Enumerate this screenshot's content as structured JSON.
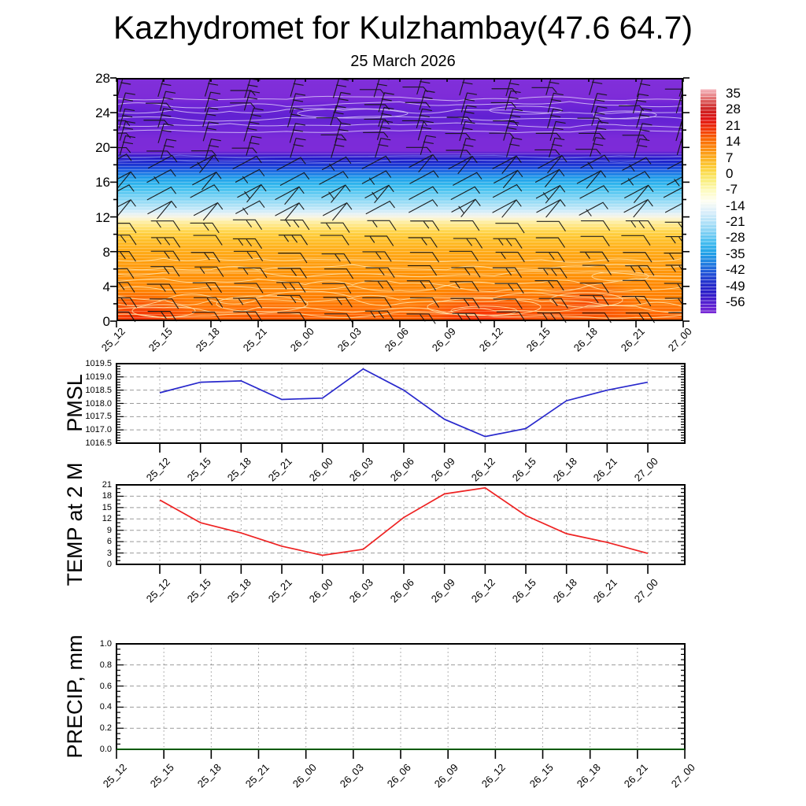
{
  "title": "Kazhydromet for Kulzhambay(47.6 64.7)",
  "subtitle": "25 March 2026",
  "time_labels": [
    "25_12",
    "25_15",
    "25_18",
    "25_21",
    "26_00",
    "26_03",
    "26_06",
    "26_09",
    "26_12",
    "26_15",
    "26_18",
    "26_21",
    "27_00"
  ],
  "colorbar": {
    "levels": [
      "35",
      "28",
      "21",
      "14",
      "7",
      "0",
      "-7",
      "-14",
      "-21",
      "-28",
      "-35",
      "-42",
      "-49",
      "-56"
    ],
    "colors": [
      "#f6bac2",
      "#e06a6a",
      "#cc2222",
      "#e01414",
      "#f23808",
      "#fa6a04",
      "#fc9212",
      "#fcb826",
      "#fcd744",
      "#f9ee7e",
      "#fdfbc0",
      "#fefef2",
      "#dceffa",
      "#b4e2f8",
      "#84d2f4",
      "#48bef0",
      "#22a4e8",
      "#2184e2",
      "#2156d8",
      "#2330cc",
      "#2a1cc8",
      "#5520d0",
      "#7a28d6"
    ]
  },
  "chart_data": [
    {
      "id": "temperature_height_profile",
      "type": "heatmap",
      "x": [
        "25_12",
        "25_15",
        "25_18",
        "25_21",
        "26_00",
        "26_03",
        "26_06",
        "26_09",
        "26_12",
        "26_15",
        "26_18",
        "26_21",
        "27_00"
      ],
      "ylim": [
        0,
        28
      ],
      "yticks": [
        0,
        4,
        8,
        12,
        16,
        20,
        24,
        28
      ],
      "legend_position": "right colorbar",
      "wind_barbs": true,
      "color_profile_top_to_bottom": [
        "#7e2bd8",
        "#6420d4",
        "#7c2bd8",
        "#2018c8",
        "#1c5ce0",
        "#22a8ec",
        "#5cccf2",
        "#a7e0f6",
        "#e9f2f4",
        "#fbf5d0",
        "#ffe273",
        "#ffc42e",
        "#ffa614",
        "#ff9a0c",
        "#ff8d06",
        "#ff7402",
        "#ff6a00"
      ]
    },
    {
      "id": "pmsl",
      "type": "line",
      "label": "PMSL",
      "color": "#2828cc",
      "x": [
        "25_12",
        "25_15",
        "25_18",
        "25_21",
        "26_00",
        "26_03",
        "26_06",
        "26_09",
        "26_12",
        "26_15",
        "26_18",
        "26_21",
        "27_00"
      ],
      "values": [
        1018.4,
        1018.8,
        1018.85,
        1018.15,
        1018.2,
        1019.3,
        1018.5,
        1017.4,
        1016.75,
        1017.05,
        1018.1,
        1018.5,
        1018.8
      ],
      "ylim": [
        1016.5,
        1019.5
      ],
      "yticks": [
        1016.5,
        1017.0,
        1017.5,
        1018.0,
        1018.5,
        1019.0,
        1019.5
      ],
      "grid": "dashed"
    },
    {
      "id": "temp2m",
      "type": "line",
      "label": "TEMP at 2 M",
      "color": "#ee2222",
      "x": [
        "25_12",
        "25_15",
        "25_18",
        "25_21",
        "26_00",
        "26_03",
        "26_06",
        "26_09",
        "26_12",
        "26_15",
        "26_18",
        "26_21",
        "27_00"
      ],
      "values": [
        17.0,
        11.0,
        8.3,
        4.8,
        2.4,
        4.0,
        12.4,
        18.6,
        20.2,
        12.9,
        8.1,
        5.8,
        2.9
      ],
      "ylim": [
        0,
        21
      ],
      "yticks": [
        0,
        3,
        6,
        9,
        12,
        15,
        18,
        21
      ],
      "grid": "dashed"
    },
    {
      "id": "precip",
      "type": "line",
      "label": "PRECIP, mm",
      "color": "#007700",
      "x": [
        "25_12",
        "25_15",
        "25_18",
        "25_21",
        "26_00",
        "26_03",
        "26_06",
        "26_09",
        "26_12",
        "26_15",
        "26_18",
        "26_21",
        "27_00"
      ],
      "values": [
        0,
        0,
        0,
        0,
        0,
        0,
        0,
        0,
        0,
        0,
        0,
        0,
        0
      ],
      "ylim": [
        0,
        1.0
      ],
      "yticks": [
        0,
        0.2,
        0.4,
        0.6,
        0.8,
        1.0
      ],
      "grid": "dashed"
    }
  ]
}
